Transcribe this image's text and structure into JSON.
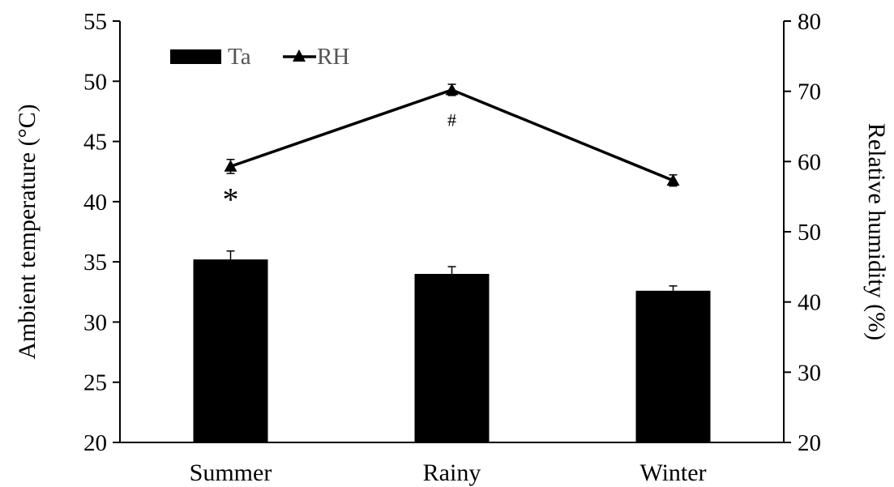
{
  "chart_data": {
    "type": "bar",
    "categories": [
      "Summer",
      "Rainy",
      "Winter"
    ],
    "series": [
      {
        "name": "Ta",
        "kind": "bar",
        "axis": "left",
        "values": [
          35.2,
          34.0,
          32.6
        ],
        "errors": [
          0.7,
          0.6,
          0.4
        ],
        "color": "#000000"
      },
      {
        "name": "RH",
        "kind": "line",
        "marker": "triangle",
        "axis": "right",
        "values": [
          59.3,
          70.2,
          57.3
        ],
        "errors": [
          1.0,
          0.8,
          0.8
        ],
        "color": "#000000"
      }
    ],
    "ylabel": "Ambient temperature (°C)",
    "y2label": "Relative humidity (%)",
    "ylim": [
      20,
      55
    ],
    "y2lim": [
      20,
      80
    ],
    "yticks": [
      "20",
      "25",
      "30",
      "35",
      "40",
      "45",
      "50",
      "55"
    ],
    "y2ticks": [
      "20",
      "30",
      "40",
      "50",
      "60",
      "70",
      "80"
    ],
    "annotations": [
      {
        "text": "*",
        "category": "Summer",
        "series": "Ta",
        "value": 40.5
      },
      {
        "text": "#",
        "category": "Rainy",
        "series": "RH",
        "value": 66.0
      }
    ],
    "legend_position": "top-left",
    "grid": false
  }
}
